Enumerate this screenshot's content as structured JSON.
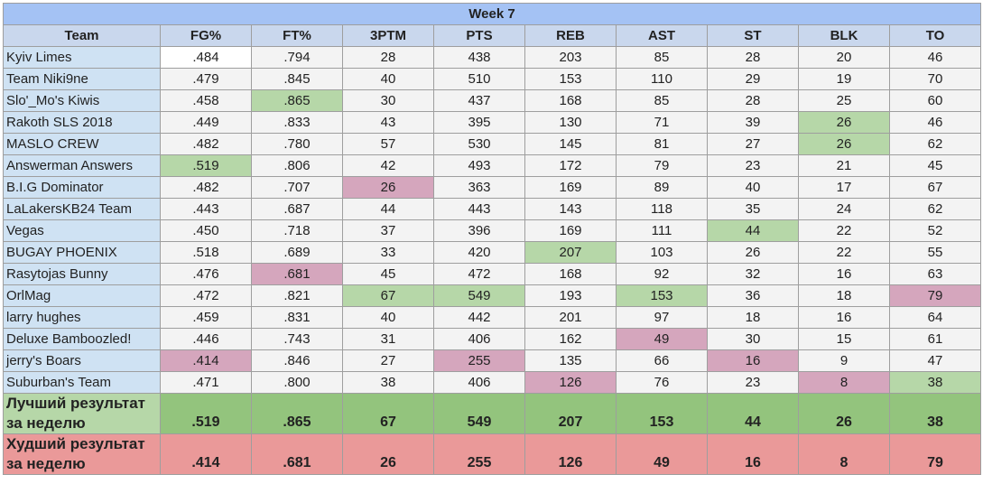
{
  "title": "Week 7",
  "columns": [
    "Team",
    "FG%",
    "FT%",
    "3PTM",
    "PTS",
    "REB",
    "AST",
    "ST",
    "BLK",
    "TO"
  ],
  "rows": [
    {
      "team": "Kyiv Limes",
      "values": [
        ".484",
        ".794",
        "28",
        "438",
        "203",
        "85",
        "28",
        "20",
        "46"
      ],
      "hl": [
        "white",
        "",
        "",
        "",
        "",
        "",
        "",
        "",
        ""
      ]
    },
    {
      "team": "Team Niki9ne",
      "values": [
        ".479",
        ".845",
        "40",
        "510",
        "153",
        "110",
        "29",
        "19",
        "70"
      ],
      "hl": [
        "",
        "",
        "",
        "",
        "",
        "",
        "",
        "",
        ""
      ]
    },
    {
      "team": "Slo'_Mo's Kiwis",
      "values": [
        ".458",
        ".865",
        "30",
        "437",
        "168",
        "85",
        "28",
        "25",
        "60"
      ],
      "hl": [
        "",
        "best",
        "",
        "",
        "",
        "",
        "",
        "",
        ""
      ]
    },
    {
      "team": "Rakoth SLS 2018",
      "values": [
        ".449",
        ".833",
        "43",
        "395",
        "130",
        "71",
        "39",
        "26",
        "46"
      ],
      "hl": [
        "",
        "",
        "",
        "",
        "",
        "",
        "",
        "best",
        ""
      ]
    },
    {
      "team": "MASLO CREW",
      "values": [
        ".482",
        ".780",
        "57",
        "530",
        "145",
        "81",
        "27",
        "26",
        "62"
      ],
      "hl": [
        "",
        "",
        "",
        "",
        "",
        "",
        "",
        "best",
        ""
      ]
    },
    {
      "team": "Answerman Answers",
      "values": [
        ".519",
        ".806",
        "42",
        "493",
        "172",
        "79",
        "23",
        "21",
        "45"
      ],
      "hl": [
        "best",
        "",
        "",
        "",
        "",
        "",
        "",
        "",
        ""
      ]
    },
    {
      "team": "B.I.G Dominator",
      "values": [
        ".482",
        ".707",
        "26",
        "363",
        "169",
        "89",
        "40",
        "17",
        "67"
      ],
      "hl": [
        "",
        "",
        "worst",
        "",
        "",
        "",
        "",
        "",
        ""
      ]
    },
    {
      "team": "LaLakersKB24 Team",
      "values": [
        ".443",
        ".687",
        "44",
        "443",
        "143",
        "118",
        "35",
        "24",
        "62"
      ],
      "hl": [
        "",
        "",
        "",
        "",
        "",
        "",
        "",
        "",
        ""
      ]
    },
    {
      "team": "Vegas",
      "values": [
        ".450",
        ".718",
        "37",
        "396",
        "169",
        "111",
        "44",
        "22",
        "52"
      ],
      "hl": [
        "",
        "",
        "",
        "",
        "",
        "",
        "best",
        "",
        ""
      ]
    },
    {
      "team": "BUGAY PHOENIX",
      "values": [
        ".518",
        ".689",
        "33",
        "420",
        "207",
        "103",
        "26",
        "22",
        "55"
      ],
      "hl": [
        "",
        "",
        "",
        "",
        "best",
        "",
        "",
        "",
        ""
      ]
    },
    {
      "team": "Rasytojas Bunny",
      "values": [
        ".476",
        ".681",
        "45",
        "472",
        "168",
        "92",
        "32",
        "16",
        "63"
      ],
      "hl": [
        "",
        "worst",
        "",
        "",
        "",
        "",
        "",
        "",
        ""
      ]
    },
    {
      "team": "OrlMag",
      "values": [
        ".472",
        ".821",
        "67",
        "549",
        "193",
        "153",
        "36",
        "18",
        "79"
      ],
      "hl": [
        "",
        "",
        "best",
        "best",
        "",
        "best",
        "",
        "",
        "worst"
      ]
    },
    {
      "team": "larry hughes",
      "values": [
        ".459",
        ".831",
        "40",
        "442",
        "201",
        "97",
        "18",
        "16",
        "64"
      ],
      "hl": [
        "",
        "",
        "",
        "",
        "",
        "",
        "",
        "",
        ""
      ]
    },
    {
      "team": "Deluxe Bamboozled!",
      "values": [
        ".446",
        ".743",
        "31",
        "406",
        "162",
        "49",
        "30",
        "15",
        "61"
      ],
      "hl": [
        "",
        "",
        "",
        "",
        "",
        "worst",
        "",
        "",
        ""
      ]
    },
    {
      "team": "jerry's Boars",
      "values": [
        ".414",
        ".846",
        "27",
        "255",
        "135",
        "66",
        "16",
        "9",
        "47"
      ],
      "hl": [
        "worst",
        "",
        "",
        "worst",
        "",
        "",
        "worst",
        "",
        ""
      ]
    },
    {
      "team": "Suburban's Team",
      "values": [
        ".471",
        ".800",
        "38",
        "406",
        "126",
        "76",
        "23",
        "8",
        "38"
      ],
      "hl": [
        "",
        "",
        "",
        "",
        "worst",
        "",
        "",
        "worst",
        "best"
      ]
    }
  ],
  "best": {
    "label": "Лучший результат за неделю",
    "values": [
      ".519",
      ".865",
      "67",
      "549",
      "207",
      "153",
      "44",
      "26",
      "38"
    ]
  },
  "worst": {
    "label": "Худший результат за неделю",
    "values": [
      ".414",
      ".681",
      "26",
      "255",
      "126",
      "49",
      "16",
      "8",
      "79"
    ]
  },
  "colors": {
    "header": "#c9d7ed",
    "title": "#a4c2f4",
    "team_cell": "#cfe2f3",
    "best": "#b6d7a8",
    "worst": "#d5a6bd",
    "best_row": "#93c47d",
    "worst_row": "#ea9999"
  }
}
